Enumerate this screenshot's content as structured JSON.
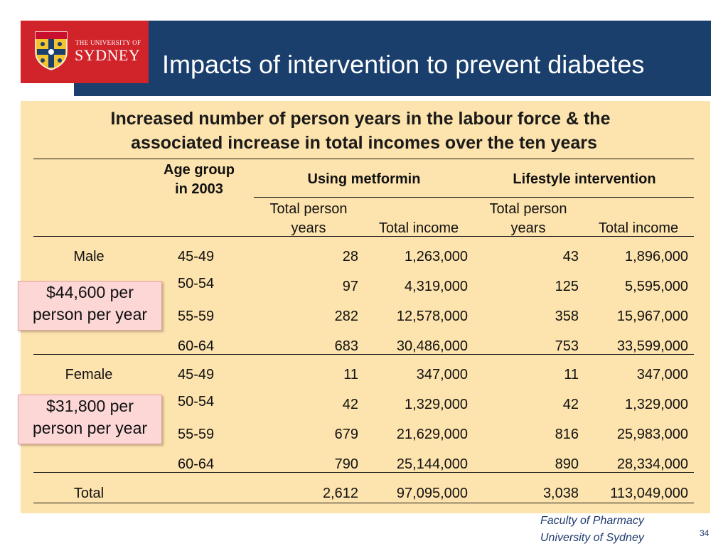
{
  "header": {
    "title": "Impacts of intervention to prevent diabetes",
    "logo_line1": "THE UNIVERSITY OF",
    "logo_line2": "SYDNEY"
  },
  "subtitle": {
    "line1": "Increased number of person years in the labour force & the",
    "line2": "associated increase in total incomes over the ten years"
  },
  "table": {
    "age_group_line1": "Age group",
    "age_group_line2": "in 2003",
    "metformin_label": "Using metformin",
    "lifestyle_label": "Lifestyle intervention",
    "col_py_line1": "Total person",
    "col_py_line2": "years",
    "col_income": "Total income",
    "rows": [
      {
        "sex": "Male",
        "age": "45-49",
        "met_py": "28",
        "met_inc": "1,263,000",
        "life_py": "43",
        "life_inc": "1,896,000"
      },
      {
        "sex": "",
        "age": "50-54",
        "met_py": "97",
        "met_inc": "4,319,000",
        "life_py": "125",
        "life_inc": "5,595,000"
      },
      {
        "sex": "",
        "age": "55-59",
        "met_py": "282",
        "met_inc": "12,578,000",
        "life_py": "358",
        "life_inc": "15,967,000"
      },
      {
        "sex": "",
        "age": "60-64",
        "met_py": "683",
        "met_inc": "30,486,000",
        "life_py": "753",
        "life_inc": "33,599,000"
      },
      {
        "sex": "Female",
        "age": "45-49",
        "met_py": "11",
        "met_inc": "347,000",
        "life_py": "11",
        "life_inc": "347,000"
      },
      {
        "sex": "",
        "age": "50-54",
        "met_py": "42",
        "met_inc": "1,329,000",
        "life_py": "42",
        "life_inc": "1,329,000"
      },
      {
        "sex": "",
        "age": "55-59",
        "met_py": "679",
        "met_inc": "21,629,000",
        "life_py": "816",
        "life_inc": "25,983,000"
      },
      {
        "sex": "",
        "age": "60-64",
        "met_py": "790",
        "met_inc": "25,144,000",
        "life_py": "890",
        "life_inc": "28,334,000"
      },
      {
        "sex": "Total",
        "age": "",
        "met_py": "2,612",
        "met_inc": "97,095,000",
        "life_py": "3,038",
        "life_inc": "113,049,000"
      }
    ]
  },
  "callouts": {
    "male_line1": "$44,600 per",
    "male_line2": "person per year",
    "female_line1": "$31,800 per",
    "female_line2": "person per year"
  },
  "footer": {
    "line1": "Faculty of Pharmacy",
    "line2": "University of Sydney",
    "page_number": "34"
  },
  "colors": {
    "header_bg": "#1a3f6c",
    "logo_bg": "#d1242a",
    "panel_bg": "#fde3ad",
    "callout_bg": "#fdd6d6"
  }
}
